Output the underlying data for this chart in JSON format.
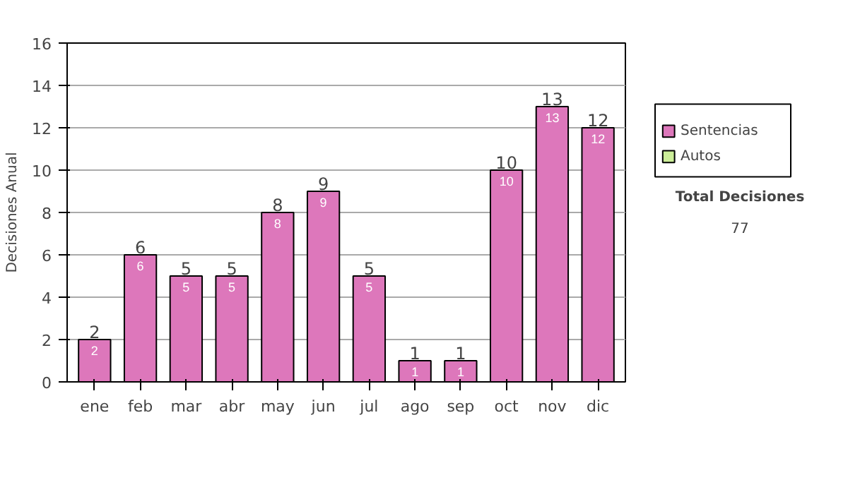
{
  "chart_data": {
    "type": "bar",
    "ylabel": "Decisiones Anual",
    "categories": [
      "ene",
      "feb",
      "mar",
      "abr",
      "may",
      "jun",
      "jul",
      "ago",
      "sep",
      "oct",
      "nov",
      "dic"
    ],
    "series": [
      {
        "name": "Sentencias",
        "color": "#dd77bb",
        "values": [
          2,
          6,
          5,
          5,
          8,
          9,
          5,
          1,
          1,
          10,
          13,
          12
        ]
      },
      {
        "name": "Autos",
        "color": "#ccee99",
        "values": [
          null,
          null,
          null,
          null,
          null,
          null,
          null,
          null,
          null,
          null,
          null,
          null
        ]
      }
    ],
    "stacked": true,
    "data_labels": true,
    "totals": [
      "2",
      "6",
      "5",
      "5",
      "8",
      "9",
      "5",
      "1",
      "1",
      "10",
      "13",
      "12"
    ],
    "ylim": [
      0,
      16
    ],
    "yticks": [
      0,
      2,
      4,
      6,
      8,
      10,
      12,
      14,
      16
    ],
    "grid": "y",
    "legend": "right",
    "annotations": [
      "Total Decisiones",
      "77"
    ]
  }
}
